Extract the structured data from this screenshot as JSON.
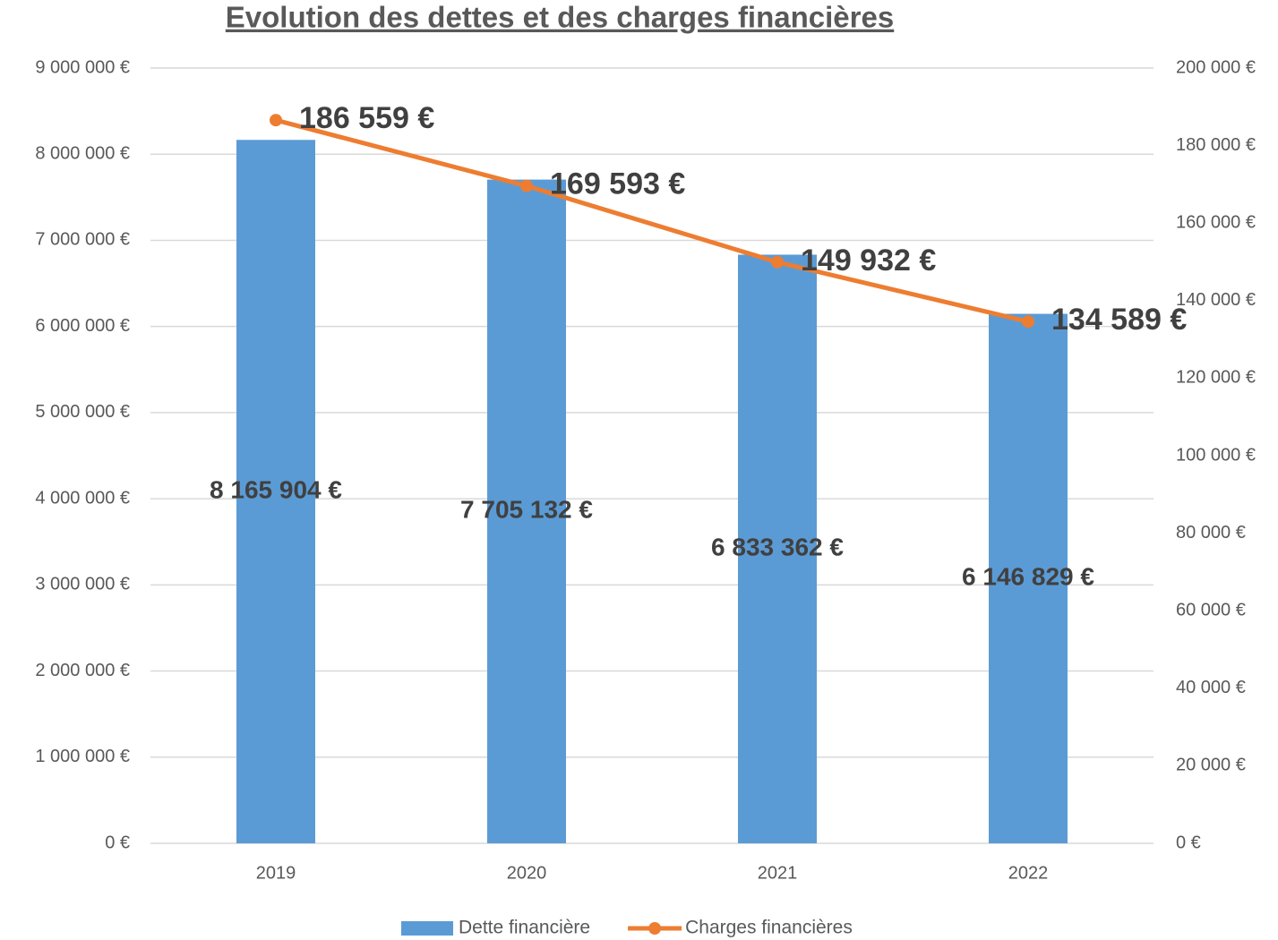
{
  "chart_data": {
    "type": "bar",
    "title": "Evolution des dettes et des charges financières",
    "categories": [
      "2019",
      "2020",
      "2021",
      "2022"
    ],
    "series": [
      {
        "name": "Dette financière",
        "type": "bar",
        "color": "#5b9bd5",
        "axis": "y",
        "values": [
          8165904,
          7705132,
          6833362,
          6146829
        ],
        "value_labels": [
          "8 165 904 €",
          "7 705 132 €",
          "6 833 362 €",
          "6 146 829 €"
        ]
      },
      {
        "name": "Charges financières",
        "type": "line",
        "color": "#ed7d31",
        "axis": "y2",
        "values": [
          186559,
          169593,
          149932,
          134589
        ],
        "value_labels": [
          "186 559 €",
          "169 593 €",
          "149 932 €",
          "134 589 €"
        ]
      }
    ],
    "ylim": [
      0,
      9000000
    ],
    "yticks": [
      {
        "value": 0,
        "label": "0 €"
      },
      {
        "value": 1000000,
        "label": "1 000 000 €"
      },
      {
        "value": 2000000,
        "label": "2 000 000 €"
      },
      {
        "value": 3000000,
        "label": "3 000 000 €"
      },
      {
        "value": 4000000,
        "label": "4 000 000 €"
      },
      {
        "value": 5000000,
        "label": "5 000 000 €"
      },
      {
        "value": 6000000,
        "label": "6 000 000 €"
      },
      {
        "value": 7000000,
        "label": "7 000 000 €"
      },
      {
        "value": 8000000,
        "label": "8 000 000 €"
      },
      {
        "value": 9000000,
        "label": "9 000 000 €"
      }
    ],
    "y2lim": [
      0,
      200000
    ],
    "y2ticks": [
      {
        "value": 0,
        "label": "0 €"
      },
      {
        "value": 20000,
        "label": "20 000 €"
      },
      {
        "value": 40000,
        "label": "40 000 €"
      },
      {
        "value": 60000,
        "label": "60 000 €"
      },
      {
        "value": 80000,
        "label": "80 000 €"
      },
      {
        "value": 100000,
        "label": "100 000 €"
      },
      {
        "value": 120000,
        "label": "120 000 €"
      },
      {
        "value": 140000,
        "label": "140 000 €"
      },
      {
        "value": 160000,
        "label": "160 000 €"
      },
      {
        "value": 180000,
        "label": "180 000 €"
      },
      {
        "value": 200000,
        "label": "200 000 €"
      }
    ],
    "grid": true,
    "legend": "bottom"
  }
}
